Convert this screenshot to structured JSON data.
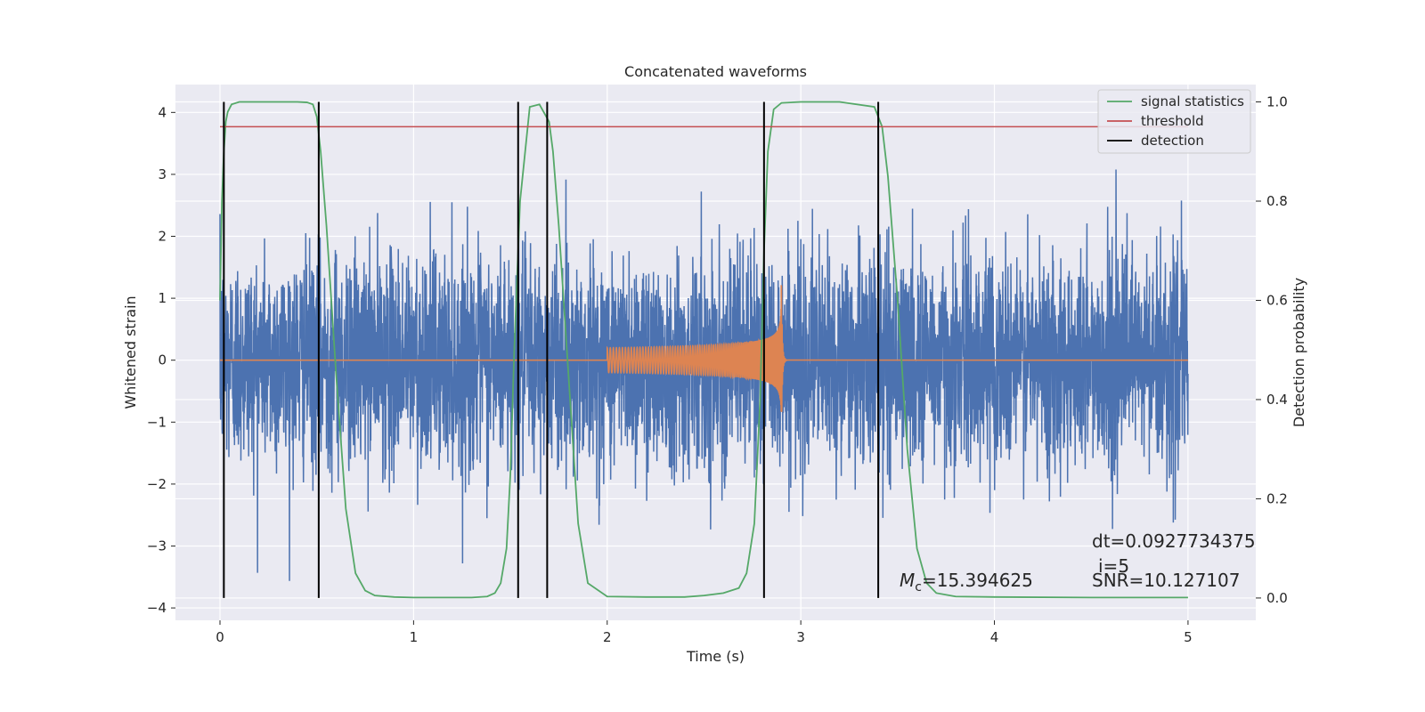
{
  "chart_data": {
    "type": "line",
    "title": "Concatenated waveforms",
    "xlabel": "Time (s)",
    "ylabel": "Whitened strain",
    "y2label": "Detection probability",
    "xlim": [
      -0.23,
      5.35
    ],
    "ylim": [
      -4.2,
      4.45
    ],
    "y2lim": [
      -0.045,
      1.035
    ],
    "xticks": [
      0,
      1,
      2,
      3,
      4,
      5
    ],
    "yticks": [
      -4,
      -3,
      -2,
      -1,
      0,
      1,
      2,
      3,
      4
    ],
    "y2ticks": [
      0.0,
      0.2,
      0.4,
      0.6,
      0.8,
      1.0
    ],
    "grid": true,
    "legend_position": "top-right",
    "legend": [
      {
        "label": "signal statistics",
        "color": "#55a868"
      },
      {
        "label": "threshold",
        "color": "#c44e52"
      },
      {
        "label": "detection",
        "color": "#000000"
      }
    ],
    "noise_series": {
      "color": "#4c72b0",
      "x_start": 0.0,
      "x_end": 5.0
    },
    "chirp_series": {
      "color": "#dd8452",
      "x_start": 2.0,
      "x_end": 2.9,
      "peak_time": 2.9
    },
    "signal_statistics": {
      "color": "#55a868",
      "x": [
        0.0,
        0.01,
        0.02,
        0.03,
        0.04,
        0.06,
        0.1,
        0.2,
        0.3,
        0.4,
        0.45,
        0.48,
        0.5,
        0.52,
        0.55,
        0.6,
        0.65,
        0.7,
        0.75,
        0.8,
        0.9,
        1.0,
        1.2,
        1.3,
        1.38,
        1.42,
        1.45,
        1.48,
        1.5,
        1.52,
        1.55,
        1.6,
        1.65,
        1.7,
        1.72,
        1.75,
        1.8,
        1.85,
        1.9,
        2.0,
        2.2,
        2.4,
        2.5,
        2.6,
        2.68,
        2.72,
        2.76,
        2.79,
        2.81,
        2.83,
        2.86,
        2.9,
        3.0,
        3.2,
        3.38,
        3.42,
        3.45,
        3.5,
        3.55,
        3.6,
        3.65,
        3.7,
        3.8,
        4.0,
        4.5,
        5.0
      ],
      "y": [
        0.6,
        0.8,
        0.9,
        0.96,
        0.98,
        0.995,
        1.0,
        1.0,
        1.0,
        1.0,
        0.999,
        0.995,
        0.97,
        0.9,
        0.75,
        0.45,
        0.18,
        0.05,
        0.015,
        0.005,
        0.002,
        0.001,
        0.001,
        0.001,
        0.003,
        0.01,
        0.03,
        0.1,
        0.25,
        0.5,
        0.8,
        0.99,
        0.995,
        0.96,
        0.9,
        0.75,
        0.45,
        0.15,
        0.03,
        0.003,
        0.002,
        0.002,
        0.005,
        0.01,
        0.02,
        0.05,
        0.15,
        0.4,
        0.7,
        0.9,
        0.985,
        0.998,
        1.0,
        1.0,
        0.99,
        0.95,
        0.85,
        0.6,
        0.3,
        0.1,
        0.03,
        0.01,
        0.003,
        0.002,
        0.001,
        0.001
      ]
    },
    "threshold": {
      "value": 0.95,
      "x_start": 0.0,
      "x_end": 5.0,
      "color": "#c44e52"
    },
    "detections": [
      0.02,
      0.51,
      1.54,
      1.69,
      2.81,
      3.4
    ],
    "annotations": {
      "dt": "dt=0.0927734375",
      "i": "i=5",
      "snr": "SNR=10.127107",
      "mc_symbol": "M",
      "mc_sub": "c",
      "mc_value": "=15.394625"
    }
  }
}
